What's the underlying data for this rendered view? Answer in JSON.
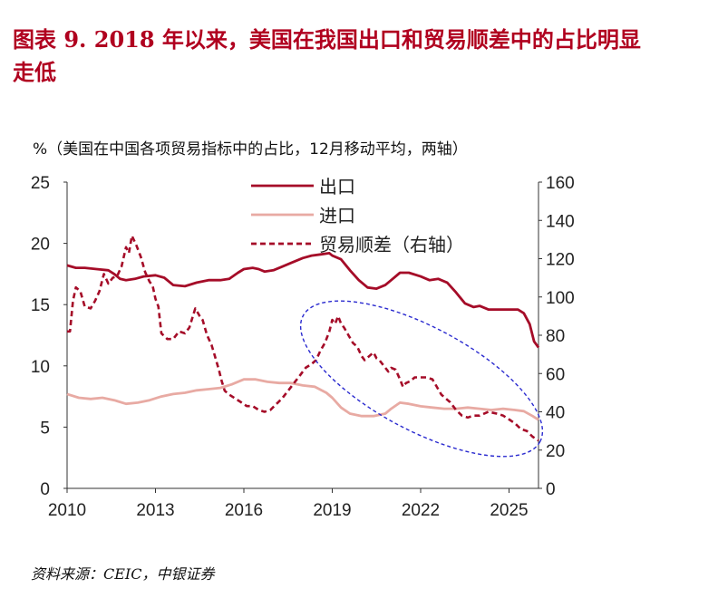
{
  "header": {
    "title": "图表 9.  2018 年以来，美国在我国出口和贸易顺差中的占比明显走低",
    "subtitle": "%（美国在中国各项贸易指标中的占比，12月移动平均，两轴）"
  },
  "footer": {
    "source": "资料来源：CEIC，中银证券"
  },
  "colors": {
    "export": "#a50c28",
    "import": "#e8aaa3",
    "surplus": "#a50c28",
    "ellipse": "#2a2acf",
    "title": "#b0001f"
  },
  "chart_data": {
    "type": "line",
    "title": "",
    "x_ticks": [
      "2010",
      "2013",
      "2016",
      "2019",
      "2022",
      "2025"
    ],
    "x_range": [
      2010.0,
      2026.0
    ],
    "y_left": {
      "range": [
        0,
        25
      ],
      "ticks": [
        "0",
        "5",
        "10",
        "15",
        "20",
        "25"
      ]
    },
    "y_right": {
      "range": [
        0,
        160
      ],
      "ticks": [
        "0",
        "20",
        "40",
        "60",
        "80",
        "100",
        "120",
        "140",
        "160"
      ]
    },
    "legend_position": "top-center",
    "annotation": "dashed-ellipse-2019-2025",
    "series": [
      {
        "name": "出口",
        "axis": "left",
        "style": "solid",
        "color": "#a50c28",
        "points": [
          [
            2010.0,
            18.2
          ],
          [
            2010.3,
            18.0
          ],
          [
            2010.6,
            18.0
          ],
          [
            2011.0,
            17.9
          ],
          [
            2011.4,
            17.8
          ],
          [
            2011.6,
            17.5
          ],
          [
            2011.8,
            17.1
          ],
          [
            2012.0,
            17.0
          ],
          [
            2012.3,
            17.1
          ],
          [
            2012.6,
            17.3
          ],
          [
            2013.0,
            17.4
          ],
          [
            2013.3,
            17.2
          ],
          [
            2013.6,
            16.6
          ],
          [
            2014.0,
            16.5
          ],
          [
            2014.4,
            16.8
          ],
          [
            2014.8,
            17.0
          ],
          [
            2015.2,
            17.0
          ],
          [
            2015.5,
            17.1
          ],
          [
            2015.8,
            17.6
          ],
          [
            2016.0,
            17.9
          ],
          [
            2016.3,
            18.0
          ],
          [
            2016.5,
            17.9
          ],
          [
            2016.7,
            17.7
          ],
          [
            2017.0,
            17.8
          ],
          [
            2017.3,
            18.1
          ],
          [
            2017.6,
            18.4
          ],
          [
            2018.0,
            18.8
          ],
          [
            2018.3,
            19.0
          ],
          [
            2018.6,
            19.1
          ],
          [
            2018.9,
            19.2
          ],
          [
            2019.0,
            19.0
          ],
          [
            2019.3,
            18.7
          ],
          [
            2019.6,
            17.8
          ],
          [
            2019.9,
            17.0
          ],
          [
            2020.2,
            16.4
          ],
          [
            2020.5,
            16.3
          ],
          [
            2020.8,
            16.6
          ],
          [
            2021.0,
            17.0
          ],
          [
            2021.3,
            17.6
          ],
          [
            2021.6,
            17.6
          ],
          [
            2022.0,
            17.3
          ],
          [
            2022.3,
            17.0
          ],
          [
            2022.6,
            17.1
          ],
          [
            2022.9,
            16.8
          ],
          [
            2023.2,
            16.0
          ],
          [
            2023.5,
            15.1
          ],
          [
            2023.8,
            14.8
          ],
          [
            2024.0,
            14.9
          ],
          [
            2024.3,
            14.6
          ],
          [
            2024.6,
            14.6
          ],
          [
            2025.0,
            14.6
          ],
          [
            2025.3,
            14.6
          ],
          [
            2025.5,
            14.3
          ],
          [
            2025.7,
            13.4
          ],
          [
            2025.85,
            12.0
          ],
          [
            2026.0,
            11.5
          ]
        ]
      },
      {
        "name": "进口",
        "axis": "left",
        "style": "solid",
        "color": "#e8aaa3",
        "points": [
          [
            2010.0,
            7.7
          ],
          [
            2010.4,
            7.4
          ],
          [
            2010.8,
            7.3
          ],
          [
            2011.2,
            7.4
          ],
          [
            2011.6,
            7.2
          ],
          [
            2012.0,
            6.9
          ],
          [
            2012.4,
            7.0
          ],
          [
            2012.8,
            7.2
          ],
          [
            2013.2,
            7.5
          ],
          [
            2013.6,
            7.7
          ],
          [
            2014.0,
            7.8
          ],
          [
            2014.4,
            8.0
          ],
          [
            2014.8,
            8.1
          ],
          [
            2015.2,
            8.2
          ],
          [
            2015.6,
            8.5
          ],
          [
            2016.0,
            8.9
          ],
          [
            2016.4,
            8.9
          ],
          [
            2016.8,
            8.7
          ],
          [
            2017.2,
            8.6
          ],
          [
            2017.6,
            8.6
          ],
          [
            2018.0,
            8.4
          ],
          [
            2018.4,
            8.3
          ],
          [
            2018.8,
            7.8
          ],
          [
            2019.0,
            7.4
          ],
          [
            2019.3,
            6.6
          ],
          [
            2019.6,
            6.1
          ],
          [
            2020.0,
            5.9
          ],
          [
            2020.4,
            5.9
          ],
          [
            2020.8,
            6.1
          ],
          [
            2021.0,
            6.5
          ],
          [
            2021.3,
            7.0
          ],
          [
            2021.6,
            6.9
          ],
          [
            2022.0,
            6.7
          ],
          [
            2022.4,
            6.6
          ],
          [
            2022.8,
            6.5
          ],
          [
            2023.2,
            6.5
          ],
          [
            2023.6,
            6.6
          ],
          [
            2024.0,
            6.5
          ],
          [
            2024.4,
            6.4
          ],
          [
            2024.8,
            6.5
          ],
          [
            2025.2,
            6.4
          ],
          [
            2025.5,
            6.3
          ],
          [
            2025.8,
            5.9
          ],
          [
            2026.0,
            5.6
          ]
        ]
      },
      {
        "name": "贸易顺差（右轴）",
        "axis": "right",
        "style": "dashed",
        "color": "#a50c28",
        "points": [
          [
            2010.0,
            82
          ],
          [
            2010.1,
            82
          ],
          [
            2010.2,
            98
          ],
          [
            2010.3,
            105
          ],
          [
            2010.45,
            103
          ],
          [
            2010.6,
            95
          ],
          [
            2010.8,
            94
          ],
          [
            2010.95,
            98
          ],
          [
            2011.1,
            103
          ],
          [
            2011.25,
            112
          ],
          [
            2011.4,
            107
          ],
          [
            2011.55,
            110
          ],
          [
            2011.7,
            111
          ],
          [
            2011.85,
            116
          ],
          [
            2012.0,
            126
          ],
          [
            2012.1,
            123
          ],
          [
            2012.2,
            132
          ],
          [
            2012.35,
            127
          ],
          [
            2012.5,
            121
          ],
          [
            2012.65,
            113
          ],
          [
            2012.8,
            108
          ],
          [
            2012.9,
            106
          ],
          [
            2013.0,
            99
          ],
          [
            2013.1,
            95
          ],
          [
            2013.2,
            81
          ],
          [
            2013.4,
            78
          ],
          [
            2013.6,
            78
          ],
          [
            2013.8,
            82
          ],
          [
            2014.0,
            81
          ],
          [
            2014.15,
            84
          ],
          [
            2014.35,
            94
          ],
          [
            2014.5,
            90
          ],
          [
            2014.6,
            88
          ],
          [
            2014.75,
            80
          ],
          [
            2014.9,
            75
          ],
          [
            2015.0,
            70
          ],
          [
            2015.15,
            62
          ],
          [
            2015.25,
            56
          ],
          [
            2015.35,
            51
          ],
          [
            2015.5,
            49
          ],
          [
            2015.7,
            47
          ],
          [
            2015.9,
            45
          ],
          [
            2016.1,
            43
          ],
          [
            2016.3,
            43
          ],
          [
            2016.5,
            41
          ],
          [
            2016.7,
            40
          ],
          [
            2016.9,
            41
          ],
          [
            2017.1,
            44
          ],
          [
            2017.3,
            47
          ],
          [
            2017.5,
            51
          ],
          [
            2017.7,
            55
          ],
          [
            2017.9,
            59
          ],
          [
            2018.1,
            63
          ],
          [
            2018.3,
            65
          ],
          [
            2018.45,
            67
          ],
          [
            2018.6,
            72
          ],
          [
            2018.75,
            76
          ],
          [
            2018.9,
            82
          ],
          [
            2019.0,
            88
          ],
          [
            2019.1,
            86
          ],
          [
            2019.2,
            90
          ],
          [
            2019.3,
            86
          ],
          [
            2019.4,
            84
          ],
          [
            2019.55,
            80
          ],
          [
            2019.7,
            76
          ],
          [
            2019.85,
            74
          ],
          [
            2020.0,
            69
          ],
          [
            2020.1,
            67
          ],
          [
            2020.25,
            69
          ],
          [
            2020.4,
            71
          ],
          [
            2020.5,
            68
          ],
          [
            2020.6,
            67
          ],
          [
            2020.75,
            64
          ],
          [
            2020.9,
            61
          ],
          [
            2021.0,
            63
          ],
          [
            2021.15,
            62
          ],
          [
            2021.3,
            57
          ],
          [
            2021.4,
            53
          ],
          [
            2021.5,
            55
          ],
          [
            2021.65,
            56
          ],
          [
            2021.8,
            58
          ],
          [
            2022.0,
            58
          ],
          [
            2022.2,
            58
          ],
          [
            2022.4,
            57
          ],
          [
            2022.55,
            53
          ],
          [
            2022.7,
            49
          ],
          [
            2022.85,
            47
          ],
          [
            2023.0,
            45
          ],
          [
            2023.2,
            41
          ],
          [
            2023.4,
            38
          ],
          [
            2023.6,
            37
          ],
          [
            2023.8,
            38
          ],
          [
            2024.0,
            38
          ],
          [
            2024.3,
            40
          ],
          [
            2024.6,
            39
          ],
          [
            2024.8,
            38
          ],
          [
            2025.0,
            36
          ],
          [
            2025.2,
            34
          ],
          [
            2025.4,
            31
          ],
          [
            2025.6,
            30
          ],
          [
            2025.8,
            27
          ],
          [
            2026.0,
            25
          ]
        ]
      }
    ]
  }
}
